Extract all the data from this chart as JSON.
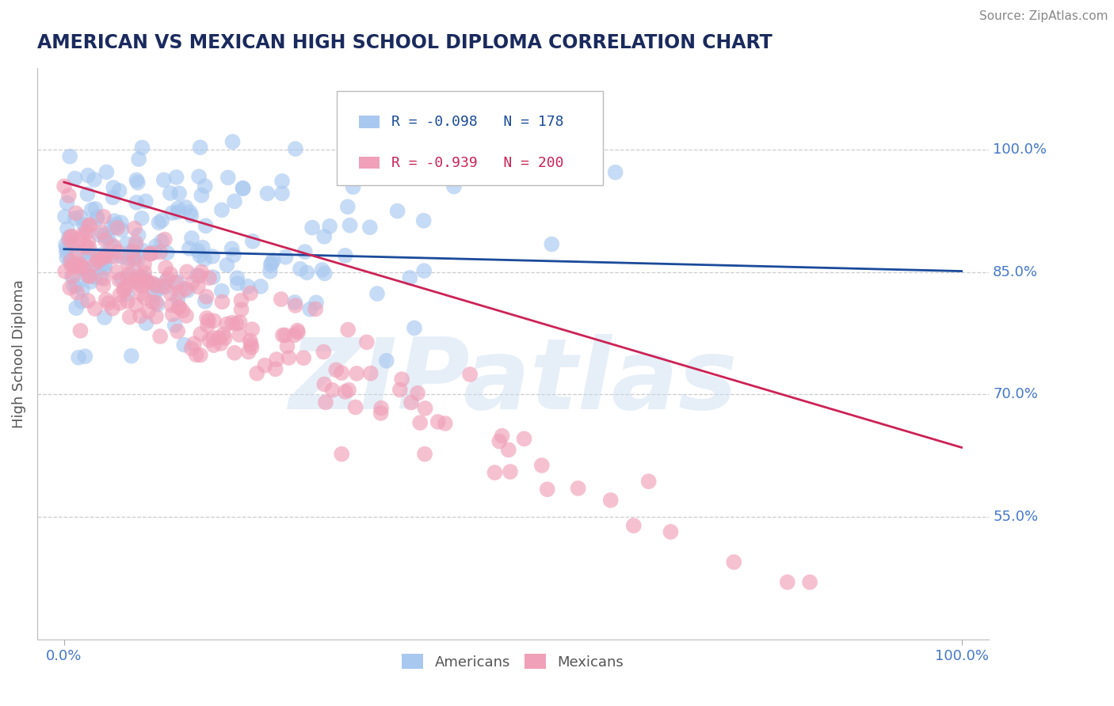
{
  "title": "AMERICAN VS MEXICAN HIGH SCHOOL DIPLOMA CORRELATION CHART",
  "source": "Source: ZipAtlas.com",
  "ylabel": "High School Diploma",
  "y_ticks": [
    0.55,
    0.7,
    0.85,
    1.0
  ],
  "y_tick_labels": [
    "55.0%",
    "70.0%",
    "85.0%",
    "100.0%"
  ],
  "xlim": [
    -3,
    103
  ],
  "ylim": [
    0.4,
    1.1
  ],
  "american_color": "#a8c8f0",
  "american_line_color": "#1a4a9a",
  "mexican_color": "#f0a0b8",
  "mexican_line_color": "#cc2255",
  "american_R": -0.098,
  "american_N": 178,
  "mexican_R": -0.939,
  "mexican_N": 200,
  "watermark": "ZIPatlas",
  "background_color": "#ffffff",
  "grid_color": "#cccccc",
  "title_color": "#1a2a5e",
  "source_color": "#888888",
  "axis_label_color": "#555555",
  "tick_label_color": "#4477cc",
  "american_line_y0": 0.878,
  "american_line_y1": 0.851,
  "mexican_line_y0": 0.96,
  "mexican_line_y1": 0.635
}
